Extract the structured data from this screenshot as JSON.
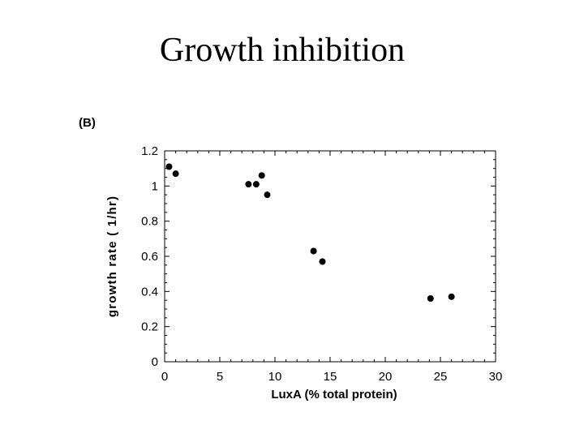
{
  "slide": {
    "title": "Growth inhibition",
    "panel_label": "(B)"
  },
  "chart_data": {
    "type": "scatter",
    "xlabel": "LuxA (% total protein)",
    "ylabel": "growth rate ( 1/hr)",
    "xlim": [
      0,
      30
    ],
    "ylim": [
      0,
      1.2
    ],
    "x_ticks": [
      0,
      5,
      10,
      15,
      20,
      25,
      30
    ],
    "y_ticks": [
      0,
      0.2,
      0.4,
      0.6,
      0.8,
      1,
      1.2
    ],
    "x_tick_labels": [
      "0",
      "5",
      "10",
      "15",
      "20",
      "25",
      "30"
    ],
    "y_tick_labels": [
      "0",
      "0.2",
      "0.4",
      "0.6",
      "0.8",
      "1",
      "1.2"
    ],
    "grid": false,
    "legend": "none",
    "marker_color": "#000000",
    "series": [
      {
        "points": [
          {
            "x": 0.4,
            "y": 1.11
          },
          {
            "x": 1.0,
            "y": 1.07
          },
          {
            "x": 7.6,
            "y": 1.01
          },
          {
            "x": 8.3,
            "y": 1.01
          },
          {
            "x": 8.8,
            "y": 1.06
          },
          {
            "x": 9.3,
            "y": 0.95
          },
          {
            "x": 13.5,
            "y": 0.63
          },
          {
            "x": 14.3,
            "y": 0.57
          },
          {
            "x": 24.1,
            "y": 0.36
          },
          {
            "x": 26.0,
            "y": 0.37
          }
        ]
      }
    ]
  }
}
